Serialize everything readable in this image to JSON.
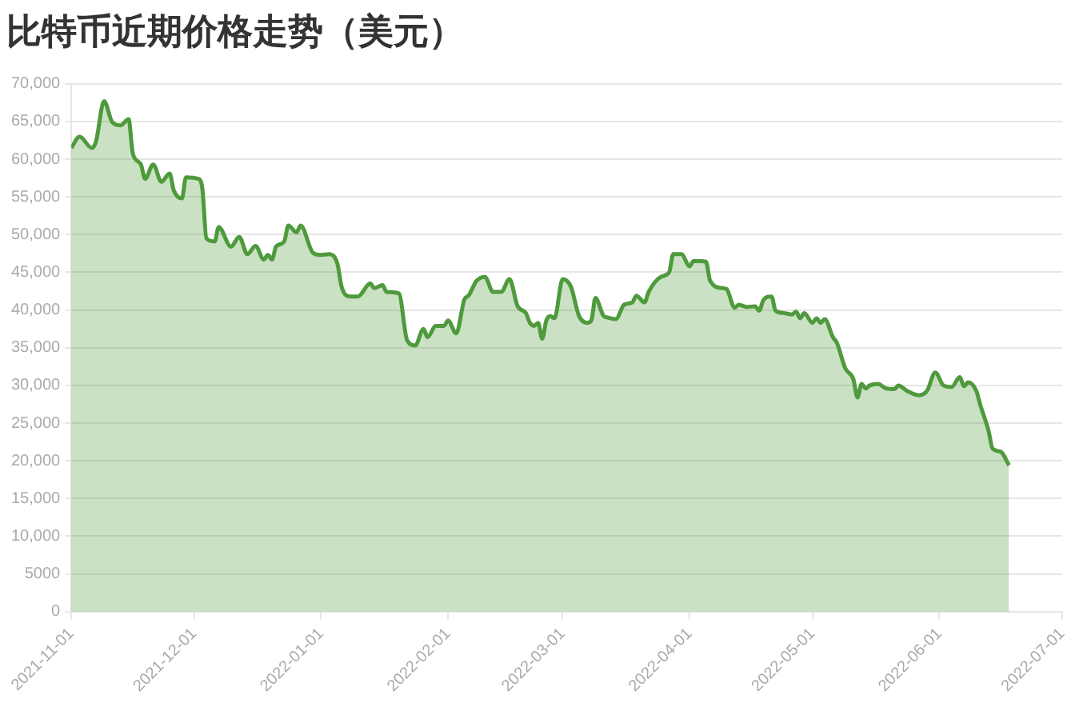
{
  "chart_data": {
    "type": "area",
    "title": "比特币近期价格走势（美元）",
    "x": [
      "2021-11-01",
      "2021-11-03",
      "2021-11-06",
      "2021-11-07",
      "2021-11-09",
      "2021-11-11",
      "2021-11-13",
      "2021-11-15",
      "2021-11-16",
      "2021-11-18",
      "2021-11-19",
      "2021-11-21",
      "2021-11-23",
      "2021-11-25",
      "2021-11-26",
      "2021-11-28",
      "2021-11-29",
      "2021-12-02",
      "2021-12-03",
      "2021-12-04",
      "2021-12-06",
      "2021-12-07",
      "2021-12-10",
      "2021-12-12",
      "2021-12-14",
      "2021-12-16",
      "2021-12-18",
      "2021-12-19",
      "2021-12-20",
      "2021-12-21",
      "2021-12-23",
      "2021-12-24",
      "2021-12-26",
      "2021-12-27",
      "2021-12-30",
      "2022-01-01",
      "2022-01-03",
      "2022-01-05",
      "2022-01-06",
      "2022-01-08",
      "2022-01-10",
      "2022-01-13",
      "2022-01-14",
      "2022-01-16",
      "2022-01-17",
      "2022-01-20",
      "2022-01-22",
      "2022-01-24",
      "2022-01-26",
      "2022-01-27",
      "2022-01-29",
      "2022-01-31",
      "2022-02-01",
      "2022-02-03",
      "2022-02-05",
      "2022-02-06",
      "2022-02-08",
      "2022-02-10",
      "2022-02-12",
      "2022-02-14",
      "2022-02-16",
      "2022-02-18",
      "2022-02-20",
      "2022-02-21",
      "2022-02-22",
      "2022-02-23",
      "2022-02-24",
      "2022-02-25",
      "2022-02-26",
      "2022-02-27",
      "2022-03-01",
      "2022-03-03",
      "2022-03-05",
      "2022-03-07",
      "2022-03-08",
      "2022-03-09",
      "2022-03-11",
      "2022-03-12",
      "2022-03-14",
      "2022-03-16",
      "2022-03-18",
      "2022-03-19",
      "2022-03-21",
      "2022-03-22",
      "2022-03-25",
      "2022-03-27",
      "2022-03-28",
      "2022-03-30",
      "2022-04-01",
      "2022-04-02",
      "2022-04-05",
      "2022-04-06",
      "2022-04-09",
      "2022-04-10",
      "2022-04-12",
      "2022-04-13",
      "2022-04-15",
      "2022-04-17",
      "2022-04-18",
      "2022-04-19",
      "2022-04-21",
      "2022-04-22",
      "2022-04-24",
      "2022-04-26",
      "2022-04-27",
      "2022-04-28",
      "2022-04-29",
      "2022-05-01",
      "2022-05-02",
      "2022-05-03",
      "2022-05-04",
      "2022-05-06",
      "2022-05-07",
      "2022-05-09",
      "2022-05-11",
      "2022-05-12",
      "2022-05-13",
      "2022-05-14",
      "2022-05-15",
      "2022-05-17",
      "2022-05-19",
      "2022-05-21",
      "2022-05-22",
      "2022-05-24",
      "2022-05-27",
      "2022-05-29",
      "2022-05-31",
      "2022-06-02",
      "2022-06-04",
      "2022-06-06",
      "2022-06-07",
      "2022-06-08",
      "2022-06-10",
      "2022-06-11",
      "2022-06-13",
      "2022-06-14",
      "2022-06-16",
      "2022-06-18"
    ],
    "series": [
      {
        "color": "#4e9a3c",
        "values": [
          61500,
          63000,
          61500,
          62300,
          67700,
          64900,
          64500,
          65300,
          60800,
          59300,
          57400,
          59300,
          57000,
          58100,
          55900,
          54800,
          57600,
          57400,
          56100,
          49500,
          49100,
          51000,
          48400,
          49700,
          47400,
          48500,
          46700,
          47300,
          46700,
          48400,
          49100,
          51200,
          50300,
          51200,
          47600,
          47300,
          47400,
          46100,
          43100,
          41800,
          41800,
          43500,
          42900,
          43300,
          42400,
          42200,
          36000,
          35300,
          37500,
          36400,
          37900,
          37900,
          38600,
          36900,
          41400,
          41900,
          43900,
          44400,
          42400,
          42400,
          44100,
          40500,
          39600,
          38300,
          37900,
          38300,
          36200,
          38600,
          39200,
          38900,
          44100,
          43100,
          39200,
          38300,
          38600,
          41600,
          39200,
          39000,
          38800,
          40700,
          41000,
          41900,
          41000,
          42400,
          44400,
          45000,
          47400,
          47400,
          45800,
          46500,
          46400,
          43900,
          42900,
          42800,
          40300,
          40700,
          40400,
          40500,
          39900,
          41300,
          41800,
          39900,
          39600,
          39400,
          39800,
          38900,
          39600,
          38300,
          38900,
          38300,
          38800,
          36400,
          35600,
          32300,
          30800,
          28400,
          30200,
          29600,
          30000,
          30200,
          29600,
          29500,
          30000,
          29300,
          28700,
          29300,
          31700,
          30000,
          29800,
          31100,
          29900,
          30400,
          29300,
          27400,
          24000,
          21600,
          21200,
          19400
        ]
      }
    ],
    "xlim": [
      "2021-11-01",
      "2022-07-01"
    ],
    "xticks": [
      "2021-11-01",
      "2021-12-01",
      "2022-01-01",
      "2022-02-01",
      "2022-03-01",
      "2022-04-01",
      "2022-05-01",
      "2022-06-01",
      "2022-07-01"
    ],
    "ylim": [
      0,
      70000
    ],
    "yticks": [
      0,
      5000,
      {
        "value": 10000,
        "label": "10,000"
      },
      {
        "value": 15000,
        "label": "15,000"
      },
      {
        "value": 20000,
        "label": "20,000"
      },
      {
        "value": 25000,
        "label": "25,000"
      },
      {
        "value": 30000,
        "label": "30,000"
      },
      {
        "value": 35000,
        "label": "35,000"
      },
      {
        "value": 40000,
        "label": "40,000"
      },
      {
        "value": 45000,
        "label": "45,000"
      },
      {
        "value": 50000,
        "label": "50,000"
      },
      {
        "value": 55000,
        "label": "55,000"
      },
      {
        "value": 60000,
        "label": "60,000"
      },
      {
        "value": 65000,
        "label": "65,000"
      },
      {
        "value": 70000,
        "label": "70,000"
      }
    ],
    "grid": "y",
    "legend": false
  }
}
